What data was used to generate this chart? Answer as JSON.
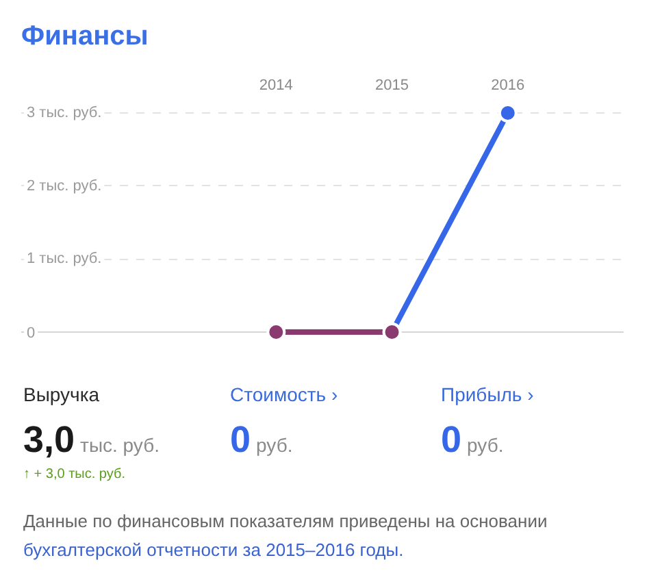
{
  "chart_data": {
    "type": "line",
    "title": "Финансы",
    "xlim": [
      2011.8,
      2017.0
    ],
    "xticks": [
      2014,
      2015,
      2016
    ],
    "ylim": [
      0,
      3
    ],
    "yticks": [
      0,
      {
        "value": 1,
        "label": "1 тыс. руб."
      },
      {
        "value": 2,
        "label": "2 тыс. руб."
      },
      {
        "value": 3,
        "label": "3 тыс. руб."
      }
    ],
    "series": [
      {
        "color": "#8b3a6f",
        "x": [
          2014,
          2015
        ],
        "values": [
          0,
          0
        ]
      },
      {
        "color": "#3567e8",
        "x": [
          2015,
          2016
        ],
        "values": [
          0,
          3
        ]
      }
    ],
    "marker": "circle",
    "grid": "y",
    "annotations": [
      "Выручка",
      "3,0",
      "тыс. руб.",
      "↑ + 3,0 тыс. руб.",
      "Стоимость ›",
      "0",
      "руб.",
      "Прибыль ›",
      "0",
      "руб.",
      "Данные по финансовым показателям приведены на основании",
      "бухгалтерской отчетности за 2015–2016 годы."
    ]
  }
}
